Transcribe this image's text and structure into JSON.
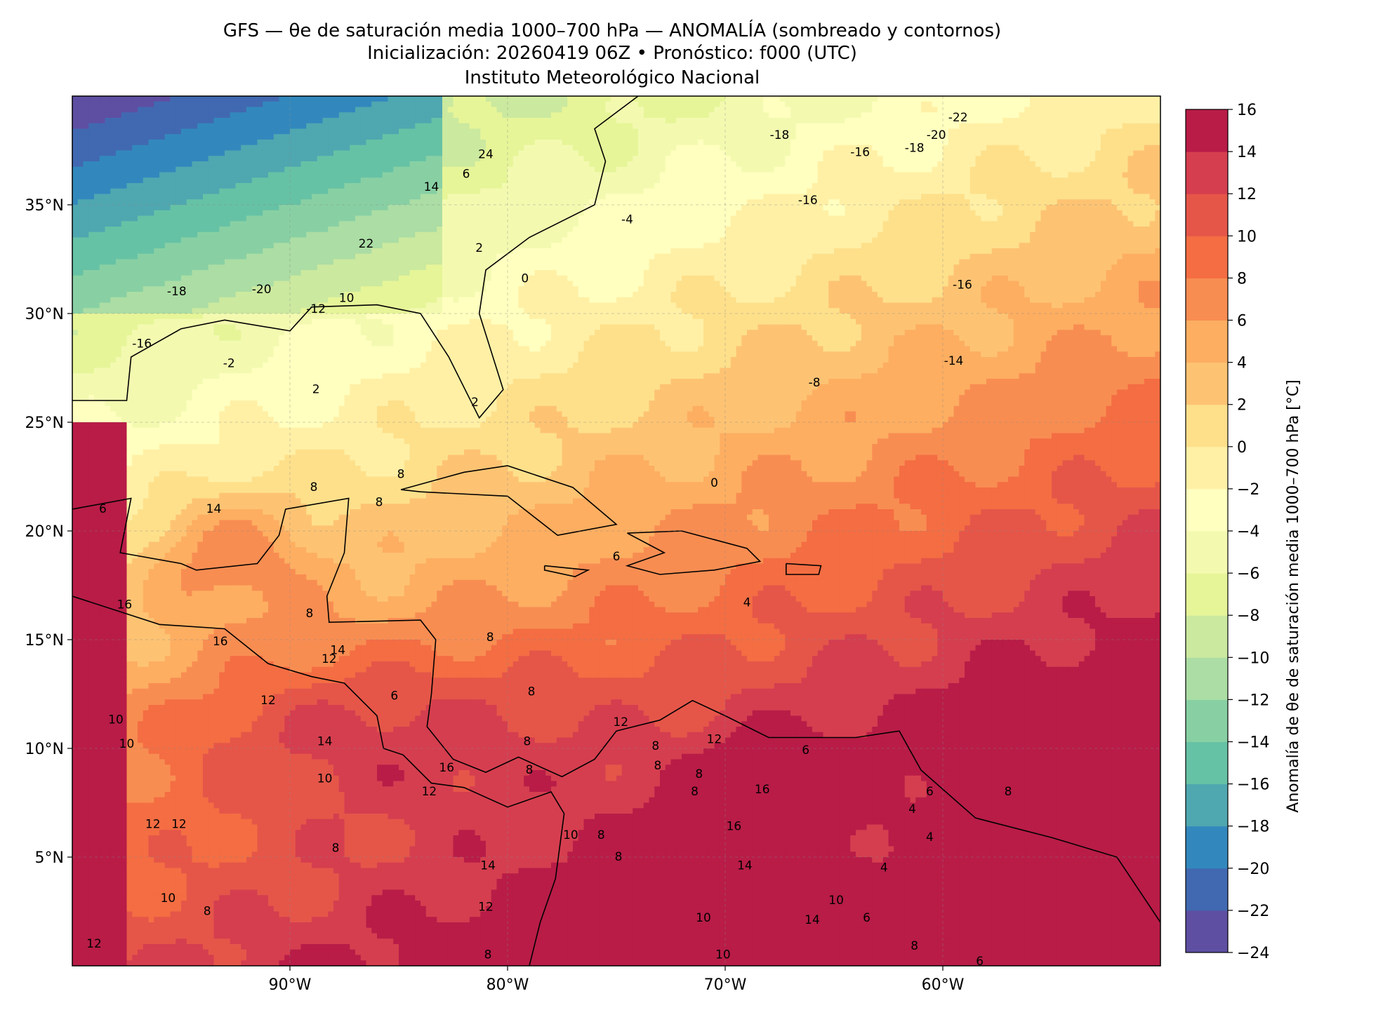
{
  "title": {
    "line1": "GFS — θe de saturación media 1000–700 hPa — ANOMALÍA (sombreado y contornos)",
    "line2": "Inicialización: 20260419 06Z   •   Pronóstico: f000 (UTC)",
    "line3": "Instituto Meteorológico Nacional"
  },
  "map": {
    "lon_range": [
      -100,
      -50
    ],
    "lat_range": [
      0,
      40
    ],
    "lon_ticks": [
      {
        "value": -90,
        "label": "90°W"
      },
      {
        "value": -80,
        "label": "80°W"
      },
      {
        "value": -70,
        "label": "70°W"
      },
      {
        "value": -60,
        "label": "60°W"
      }
    ],
    "lat_ticks": [
      {
        "value": 35,
        "label": "35°N"
      },
      {
        "value": 30,
        "label": "30°N"
      },
      {
        "value": 25,
        "label": "25°N"
      },
      {
        "value": 20,
        "label": "20°N"
      },
      {
        "value": 15,
        "label": "15°N"
      },
      {
        "value": 10,
        "label": "10°N"
      },
      {
        "value": 5,
        "label": "5°N"
      }
    ],
    "contour_labels": [
      {
        "text": "-22",
        "lon": -59.3,
        "lat": 39.0
      },
      {
        "text": "-20",
        "lon": -60.3,
        "lat": 38.2
      },
      {
        "text": "-18",
        "lon": -67.5,
        "lat": 38.2
      },
      {
        "text": "-18",
        "lon": -61.3,
        "lat": 37.6
      },
      {
        "text": "-16",
        "lon": -63.8,
        "lat": 37.4
      },
      {
        "text": "-16",
        "lon": -66.2,
        "lat": 35.2
      },
      {
        "text": "-16",
        "lon": -59.1,
        "lat": 31.3
      },
      {
        "text": "-14",
        "lon": -59.5,
        "lat": 27.8
      },
      {
        "text": "-8",
        "lon": -65.9,
        "lat": 26.8
      },
      {
        "text": "-4",
        "lon": -74.5,
        "lat": 34.3
      },
      {
        "text": "24",
        "lon": -81.0,
        "lat": 37.3
      },
      {
        "text": "6",
        "lon": -81.9,
        "lat": 36.4
      },
      {
        "text": "14",
        "lon": -83.5,
        "lat": 35.8
      },
      {
        "text": "22",
        "lon": -86.5,
        "lat": 33.2
      },
      {
        "text": "2",
        "lon": -81.3,
        "lat": 33.0
      },
      {
        "text": "0",
        "lon": -79.2,
        "lat": 31.6
      },
      {
        "text": "-18",
        "lon": -95.2,
        "lat": 31.0
      },
      {
        "text": "-20",
        "lon": -91.3,
        "lat": 31.1
      },
      {
        "text": "-12",
        "lon": -88.8,
        "lat": 30.2
      },
      {
        "text": "10",
        "lon": -87.4,
        "lat": 30.7
      },
      {
        "text": "-16",
        "lon": -96.8,
        "lat": 28.6
      },
      {
        "text": "-2",
        "lon": -92.8,
        "lat": 27.7
      },
      {
        "text": "2",
        "lon": -88.8,
        "lat": 26.5
      },
      {
        "text": "2",
        "lon": -81.5,
        "lat": 25.9
      },
      {
        "text": "0",
        "lon": -70.5,
        "lat": 22.2
      },
      {
        "text": "8",
        "lon": -84.9,
        "lat": 22.6
      },
      {
        "text": "8",
        "lon": -88.9,
        "lat": 22.0
      },
      {
        "text": "8",
        "lon": -85.9,
        "lat": 21.3
      },
      {
        "text": "6",
        "lon": -98.6,
        "lat": 21.0
      },
      {
        "text": "14",
        "lon": -93.5,
        "lat": 21.0
      },
      {
        "text": "6",
        "lon": -75.0,
        "lat": 18.8
      },
      {
        "text": "16",
        "lon": -97.6,
        "lat": 16.6
      },
      {
        "text": "8",
        "lon": -89.1,
        "lat": 16.2
      },
      {
        "text": "16",
        "lon": -93.2,
        "lat": 14.9
      },
      {
        "text": "14",
        "lon": -87.8,
        "lat": 14.5
      },
      {
        "text": "4",
        "lon": -69.0,
        "lat": 16.7
      },
      {
        "text": "8",
        "lon": -80.8,
        "lat": 15.1
      },
      {
        "text": "12",
        "lon": -88.2,
        "lat": 14.1
      },
      {
        "text": "6",
        "lon": -85.2,
        "lat": 12.4
      },
      {
        "text": "12",
        "lon": -91.0,
        "lat": 12.2
      },
      {
        "text": "8",
        "lon": -78.9,
        "lat": 12.6
      },
      {
        "text": "10",
        "lon": -98.0,
        "lat": 11.3
      },
      {
        "text": "10",
        "lon": -97.5,
        "lat": 10.2
      },
      {
        "text": "14",
        "lon": -88.4,
        "lat": 10.3
      },
      {
        "text": "12",
        "lon": -74.8,
        "lat": 11.2
      },
      {
        "text": "8",
        "lon": -73.2,
        "lat": 10.1
      },
      {
        "text": "8",
        "lon": -79.1,
        "lat": 10.3
      },
      {
        "text": "12",
        "lon": -70.5,
        "lat": 10.4
      },
      {
        "text": "6",
        "lon": -66.3,
        "lat": 9.9
      },
      {
        "text": "8",
        "lon": -73.1,
        "lat": 9.2
      },
      {
        "text": "8",
        "lon": -79.0,
        "lat": 9.0
      },
      {
        "text": "16",
        "lon": -82.8,
        "lat": 9.1
      },
      {
        "text": "8",
        "lon": -71.2,
        "lat": 8.8
      },
      {
        "text": "10",
        "lon": -88.4,
        "lat": 8.6
      },
      {
        "text": "16",
        "lon": -68.3,
        "lat": 8.1
      },
      {
        "text": "6",
        "lon": -60.6,
        "lat": 8.0
      },
      {
        "text": "12",
        "lon": -83.6,
        "lat": 8.0
      },
      {
        "text": "8",
        "lon": -71.4,
        "lat": 8.0
      },
      {
        "text": "8",
        "lon": -57.0,
        "lat": 8.0
      },
      {
        "text": "4",
        "lon": -61.4,
        "lat": 7.2
      },
      {
        "text": "16",
        "lon": -69.6,
        "lat": 6.4
      },
      {
        "text": "12",
        "lon": -96.3,
        "lat": 6.5
      },
      {
        "text": "12",
        "lon": -95.1,
        "lat": 6.5
      },
      {
        "text": "10",
        "lon": -77.1,
        "lat": 6.0
      },
      {
        "text": "8",
        "lon": -75.7,
        "lat": 6.0
      },
      {
        "text": "4",
        "lon": -60.6,
        "lat": 5.9
      },
      {
        "text": "8",
        "lon": -87.9,
        "lat": 5.4
      },
      {
        "text": "8",
        "lon": -74.9,
        "lat": 5.0
      },
      {
        "text": "14",
        "lon": -69.1,
        "lat": 4.6
      },
      {
        "text": "14",
        "lon": -80.9,
        "lat": 4.6
      },
      {
        "text": "4",
        "lon": -62.7,
        "lat": 4.5
      },
      {
        "text": "10",
        "lon": -95.6,
        "lat": 3.1
      },
      {
        "text": "12",
        "lon": -81.0,
        "lat": 2.7
      },
      {
        "text": "10",
        "lon": -64.9,
        "lat": 3.0
      },
      {
        "text": "8",
        "lon": -93.8,
        "lat": 2.5
      },
      {
        "text": "14",
        "lon": -66.0,
        "lat": 2.1
      },
      {
        "text": "6",
        "lon": -63.5,
        "lat": 2.2
      },
      {
        "text": "10",
        "lon": -71.0,
        "lat": 2.2
      },
      {
        "text": "12",
        "lon": -99.0,
        "lat": 1.0
      },
      {
        "text": "8",
        "lon": -61.3,
        "lat": 0.9
      },
      {
        "text": "10",
        "lon": -70.1,
        "lat": 0.5
      },
      {
        "text": "6",
        "lon": -58.3,
        "lat": 0.2
      },
      {
        "text": "8",
        "lon": -80.9,
        "lat": 0.5
      }
    ]
  },
  "colorbar": {
    "label": "Anomalía de θe de saturación media 1000–700 hPa [°C]",
    "levels": [
      -24,
      -22,
      -20,
      -18,
      -16,
      -14,
      -12,
      -10,
      -8,
      -6,
      -4,
      -2,
      0,
      2,
      4,
      6,
      8,
      10,
      12,
      14,
      16
    ],
    "tick_labels": [
      "−24",
      "−22",
      "−20",
      "−18",
      "−16",
      "−14",
      "−12",
      "−10",
      "−8",
      "−6",
      "−4",
      "−2",
      "0",
      "2",
      "4",
      "6",
      "8",
      "10",
      "12",
      "14",
      "16"
    ],
    "colors": [
      "#5e4fa2",
      "#4169b1",
      "#3288bd",
      "#4fa7b0",
      "#66c2a5",
      "#88d0a4",
      "#abdda4",
      "#cbe99f",
      "#e6f598",
      "#f3fab0",
      "#ffffbf",
      "#fff0a6",
      "#fee08b",
      "#fdc373",
      "#fdae61",
      "#f88d52",
      "#f46d43",
      "#e55649",
      "#d53e4f",
      "#b81c47",
      "#9e0142"
    ]
  }
}
